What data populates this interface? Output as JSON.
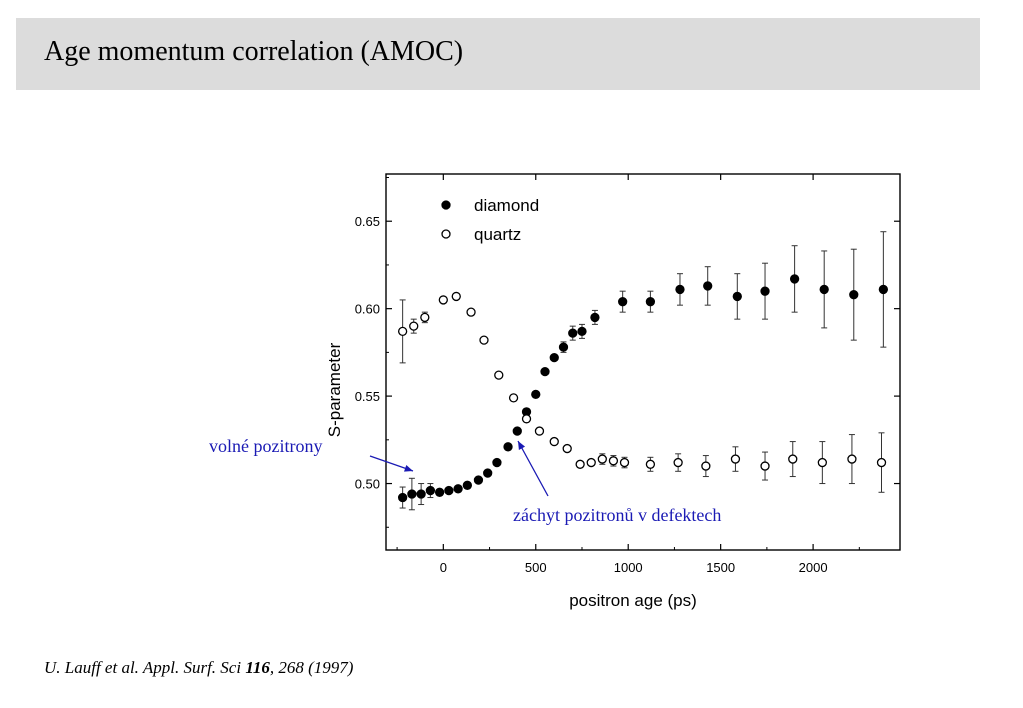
{
  "title": "Age momentum correlation (AMOC)",
  "annotations": {
    "free": "volné pozitrony",
    "trapped": "záchyt pozitronů v defektech"
  },
  "citation": {
    "authors": "U. Lauff et al. Appl. Surf. Sci ",
    "volume": "116",
    "rest": ", 268 (1997)"
  },
  "colors": {
    "annotation": "#1a1ab4",
    "title_bar": "#dcdcdc"
  },
  "chart_data": {
    "type": "scatter",
    "xlabel": "positron age (ps)",
    "ylabel": "S-parameter",
    "xlim": [
      -310,
      2470
    ],
    "ylim": [
      0.462,
      0.677
    ],
    "xticks": [
      0,
      500,
      1000,
      1500,
      2000
    ],
    "yticks": [
      0.5,
      0.55,
      0.6,
      0.65
    ],
    "yticklabels": [
      "0.50",
      "0.55",
      "0.60",
      "0.65"
    ],
    "legend_position": "top-left",
    "series": [
      {
        "name": "diamond",
        "marker": "filled-circle",
        "points": [
          {
            "x": -220,
            "y": 0.492,
            "err": 0.006
          },
          {
            "x": -170,
            "y": 0.494,
            "err": 0.009
          },
          {
            "x": -120,
            "y": 0.494,
            "err": 0.006
          },
          {
            "x": -70,
            "y": 0.496,
            "err": 0.004
          },
          {
            "x": -20,
            "y": 0.495
          },
          {
            "x": 30,
            "y": 0.496
          },
          {
            "x": 80,
            "y": 0.497
          },
          {
            "x": 130,
            "y": 0.499
          },
          {
            "x": 190,
            "y": 0.502
          },
          {
            "x": 240,
            "y": 0.506
          },
          {
            "x": 290,
            "y": 0.512
          },
          {
            "x": 350,
            "y": 0.521
          },
          {
            "x": 400,
            "y": 0.53
          },
          {
            "x": 450,
            "y": 0.541
          },
          {
            "x": 500,
            "y": 0.551
          },
          {
            "x": 550,
            "y": 0.564
          },
          {
            "x": 600,
            "y": 0.572
          },
          {
            "x": 650,
            "y": 0.578,
            "err": 0.003
          },
          {
            "x": 700,
            "y": 0.586,
            "err": 0.004
          },
          {
            "x": 750,
            "y": 0.587,
            "err": 0.004
          },
          {
            "x": 820,
            "y": 0.595,
            "err": 0.004
          },
          {
            "x": 970,
            "y": 0.604,
            "err": 0.006
          },
          {
            "x": 1120,
            "y": 0.604,
            "err": 0.006
          },
          {
            "x": 1280,
            "y": 0.611,
            "err": 0.009
          },
          {
            "x": 1430,
            "y": 0.613,
            "err": 0.011
          },
          {
            "x": 1590,
            "y": 0.607,
            "err": 0.013
          },
          {
            "x": 1740,
            "y": 0.61,
            "err": 0.016
          },
          {
            "x": 1900,
            "y": 0.617,
            "err": 0.019
          },
          {
            "x": 2060,
            "y": 0.611,
            "err": 0.022
          },
          {
            "x": 2220,
            "y": 0.608,
            "err": 0.026
          },
          {
            "x": 2380,
            "y": 0.611,
            "err": 0.033
          }
        ]
      },
      {
        "name": "quartz",
        "marker": "open-circle",
        "points": [
          {
            "x": -220,
            "y": 0.587,
            "err": 0.018
          },
          {
            "x": -160,
            "y": 0.59,
            "err": 0.004
          },
          {
            "x": -100,
            "y": 0.595,
            "err": 0.003
          },
          {
            "x": 0,
            "y": 0.605
          },
          {
            "x": 70,
            "y": 0.607
          },
          {
            "x": 150,
            "y": 0.598
          },
          {
            "x": 220,
            "y": 0.582
          },
          {
            "x": 300,
            "y": 0.562
          },
          {
            "x": 380,
            "y": 0.549
          },
          {
            "x": 450,
            "y": 0.537
          },
          {
            "x": 520,
            "y": 0.53
          },
          {
            "x": 600,
            "y": 0.524
          },
          {
            "x": 670,
            "y": 0.52
          },
          {
            "x": 740,
            "y": 0.511
          },
          {
            "x": 800,
            "y": 0.512
          },
          {
            "x": 860,
            "y": 0.514,
            "err": 0.003
          },
          {
            "x": 920,
            "y": 0.513,
            "err": 0.003
          },
          {
            "x": 980,
            "y": 0.512,
            "err": 0.003
          },
          {
            "x": 1120,
            "y": 0.511,
            "err": 0.004
          },
          {
            "x": 1270,
            "y": 0.512,
            "err": 0.005
          },
          {
            "x": 1420,
            "y": 0.51,
            "err": 0.006
          },
          {
            "x": 1580,
            "y": 0.514,
            "err": 0.007
          },
          {
            "x": 1740,
            "y": 0.51,
            "err": 0.008
          },
          {
            "x": 1890,
            "y": 0.514,
            "err": 0.01
          },
          {
            "x": 2050,
            "y": 0.512,
            "err": 0.012
          },
          {
            "x": 2210,
            "y": 0.514,
            "err": 0.014
          },
          {
            "x": 2370,
            "y": 0.512,
            "err": 0.017
          }
        ]
      }
    ]
  }
}
